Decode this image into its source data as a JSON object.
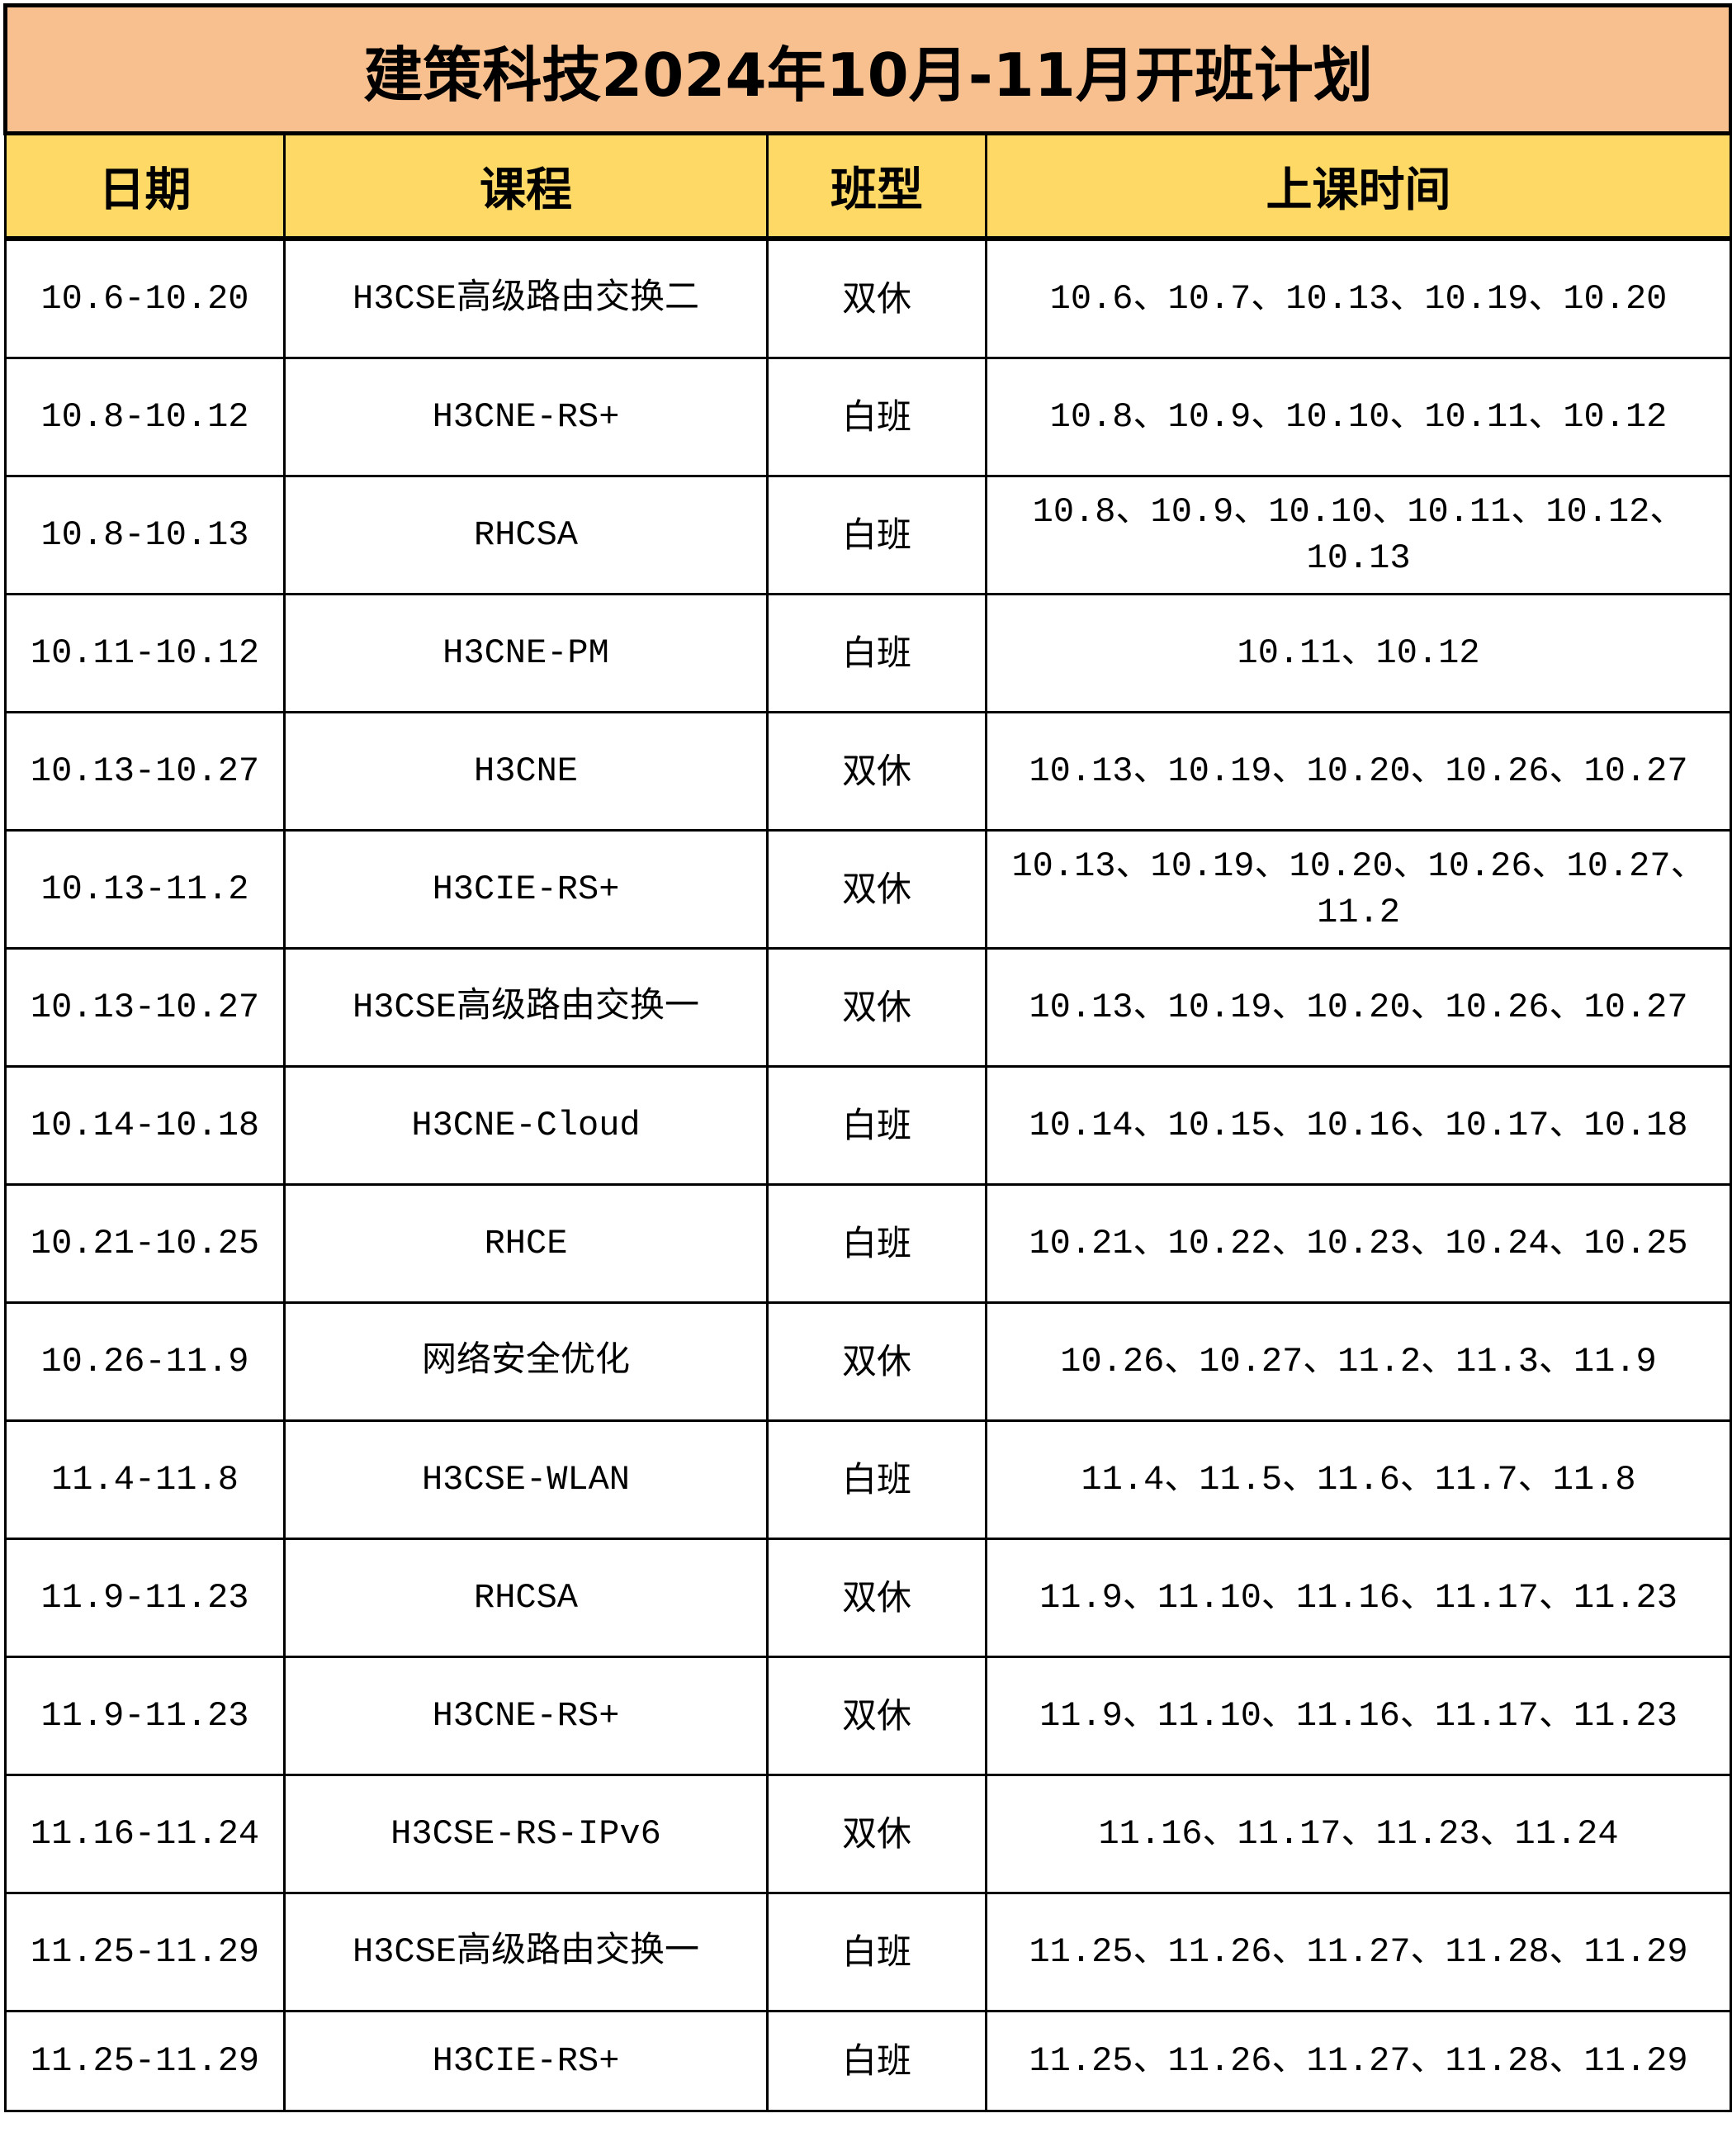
{
  "title": "建策科技2024年10月-11月开班计划",
  "colors": {
    "title_bg": "#f9c08f",
    "header_bg": "#fed966",
    "border": "#000000"
  },
  "columns": [
    "日期",
    "课程",
    "班型",
    "上课时间"
  ],
  "rows": [
    {
      "date": "10.6-10.20",
      "course": "H3CSE高级路由交换二",
      "type": "双休",
      "times": "10.6、10.7、10.13、10.19、10.20"
    },
    {
      "date": "10.8-10.12",
      "course": "H3CNE-RS+",
      "type": "白班",
      "times": "10.8、10.9、10.10、10.11、10.12"
    },
    {
      "date": "10.8-10.13",
      "course": "RHCSA",
      "type": "白班",
      "times": "10.8、10.9、10.10、10.11、10.12、10.13"
    },
    {
      "date": "10.11-10.12",
      "course": "H3CNE-PM",
      "type": "白班",
      "times": "10.11、10.12"
    },
    {
      "date": "10.13-10.27",
      "course": "H3CNE",
      "type": "双休",
      "times": "10.13、10.19、10.20、10.26、10.27"
    },
    {
      "date": "10.13-11.2",
      "course": "H3CIE-RS+",
      "type": "双休",
      "times": "10.13、10.19、10.20、10.26、10.27、11.2"
    },
    {
      "date": "10.13-10.27",
      "course": "H3CSE高级路由交换一",
      "type": "双休",
      "times": "10.13、10.19、10.20、10.26、10.27"
    },
    {
      "date": "10.14-10.18",
      "course": "H3CNE-Cloud",
      "type": "白班",
      "times": "10.14、10.15、10.16、10.17、10.18"
    },
    {
      "date": "10.21-10.25",
      "course": "RHCE",
      "type": "白班",
      "times": "10.21、10.22、10.23、10.24、10.25"
    },
    {
      "date": "10.26-11.9",
      "course": "网络安全优化",
      "type": "双休",
      "times": "10.26、10.27、11.2、11.3、11.9"
    },
    {
      "date": "11.4-11.8",
      "course": "H3CSE-WLAN",
      "type": "白班",
      "times": "11.4、11.5、11.6、11.7、11.8"
    },
    {
      "date": "11.9-11.23",
      "course": "RHCSA",
      "type": "双休",
      "times": "11.9、11.10、11.16、11.17、11.23"
    },
    {
      "date": "11.9-11.23",
      "course": "H3CNE-RS+",
      "type": "双休",
      "times": "11.9、11.10、11.16、11.17、11.23"
    },
    {
      "date": "11.16-11.24",
      "course": "H3CSE-RS-IPv6",
      "type": "双休",
      "times": "11.16、11.17、11.23、11.24"
    },
    {
      "date": "11.25-11.29",
      "course": "H3CSE高级路由交换一",
      "type": "白班",
      "times": "11.25、11.26、11.27、11.28、11.29"
    },
    {
      "date": "11.25-11.29",
      "course": "H3CIE-RS+",
      "type": "白班",
      "times": "11.25、11.26、11.27、11.28、11.29"
    }
  ]
}
